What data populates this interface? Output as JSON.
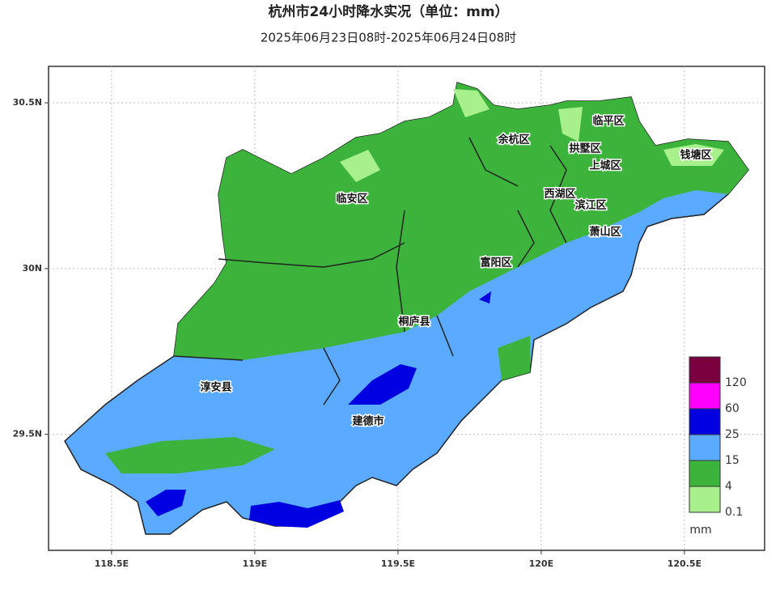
{
  "title": "杭州市24小时降水实况（单位：mm）",
  "subtitle": "2025年06月23日08时-2025年06月24日08时",
  "map": {
    "xlim": [
      118.28,
      120.78
    ],
    "ylim": [
      29.15,
      30.61
    ],
    "xticks": [
      {
        "value": 118.5,
        "label": "118.5E"
      },
      {
        "value": 119,
        "label": "119E"
      },
      {
        "value": 119.5,
        "label": "119.5E"
      },
      {
        "value": 120,
        "label": "120E"
      },
      {
        "value": 120.5,
        "label": "120.5E"
      }
    ],
    "yticks": [
      {
        "value": 29.5,
        "label": "29.5N"
      },
      {
        "value": 30,
        "label": "30N"
      },
      {
        "value": 30.5,
        "label": "30.5N"
      }
    ],
    "grid": true,
    "districts": [
      "临安区",
      "余杭区",
      "临平区",
      "拱墅区",
      "上城区",
      "钱塘区",
      "西湖区",
      "滨江区",
      "萧山区",
      "富阳区",
      "桐庐县",
      "淳安县",
      "建德市"
    ]
  },
  "legend": {
    "unit": "mm",
    "levels": [
      0.1,
      4,
      15,
      25,
      60,
      120
    ],
    "colors": [
      "#a8f08c",
      "#3cb43c",
      "#5aabff",
      "#0000e0",
      "#ff00ff",
      "#7a0040"
    ]
  }
}
